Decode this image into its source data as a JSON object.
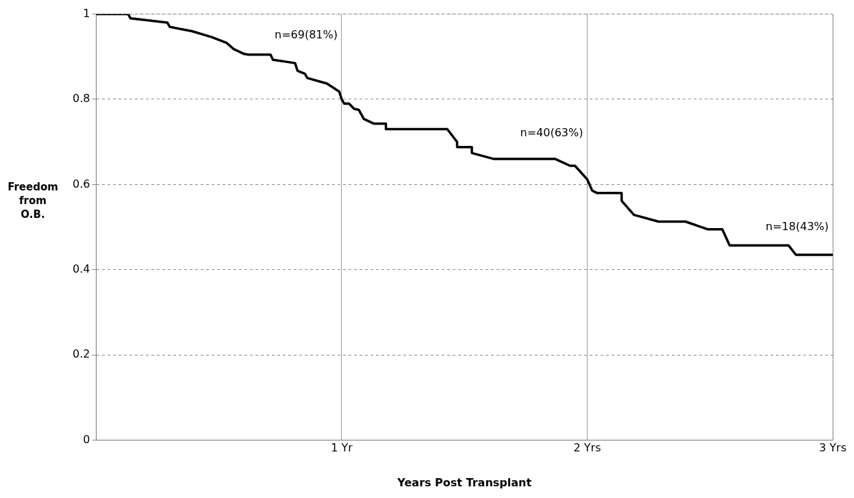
{
  "chart_data": {
    "type": "line",
    "xlabel": "Years Post Transplant",
    "ylabel": "Freedom from O.B.",
    "series": [
      {
        "color": "#000000",
        "x": [
          0,
          0.13,
          0.14,
          0.29,
          0.3,
          0.39,
          0.47,
          0.53,
          0.56,
          0.6,
          0.62,
          0.71,
          0.72,
          0.81,
          0.82,
          0.85,
          0.86,
          0.94,
          0.99,
          1.0,
          1.01,
          1.03,
          1.05,
          1.07,
          1.09,
          1.13,
          1.18,
          1.18,
          1.43,
          1.47,
          1.47,
          1.53,
          1.53,
          1.62,
          1.87,
          1.93,
          1.95,
          2.0,
          2.02,
          2.04,
          2.14,
          2.14,
          2.19,
          2.29,
          2.4,
          2.49,
          2.55,
          2.58,
          2.82,
          2.85,
          3.0
        ],
        "values": [
          1.0,
          1.0,
          0.99,
          0.98,
          0.97,
          0.96,
          0.946,
          0.933,
          0.918,
          0.907,
          0.905,
          0.905,
          0.893,
          0.885,
          0.867,
          0.86,
          0.85,
          0.837,
          0.818,
          0.8,
          0.79,
          0.79,
          0.778,
          0.775,
          0.754,
          0.743,
          0.743,
          0.73,
          0.73,
          0.7,
          0.688,
          0.688,
          0.674,
          0.66,
          0.66,
          0.644,
          0.644,
          0.612,
          0.586,
          0.58,
          0.58,
          0.562,
          0.529,
          0.513,
          0.513,
          0.495,
          0.495,
          0.457,
          0.457,
          0.435,
          0.435
        ]
      }
    ],
    "xlim": [
      0,
      3
    ],
    "xticks": [
      {
        "value": 0,
        "label": null
      },
      {
        "value": 1,
        "label": "1 Yr"
      },
      {
        "value": 2,
        "label": "2 Yrs"
      },
      {
        "value": 3,
        "label": "3 Yrs"
      }
    ],
    "ylim": [
      0,
      1
    ],
    "yticks": [
      0,
      0.2,
      0.4,
      0.6,
      0.8,
      1
    ],
    "grid": true,
    "legend": false,
    "marker": "none",
    "line_style": "solid",
    "annotations": [
      "n=69(81%)",
      "n=40(63%)",
      "n=18(43%)"
    ]
  }
}
